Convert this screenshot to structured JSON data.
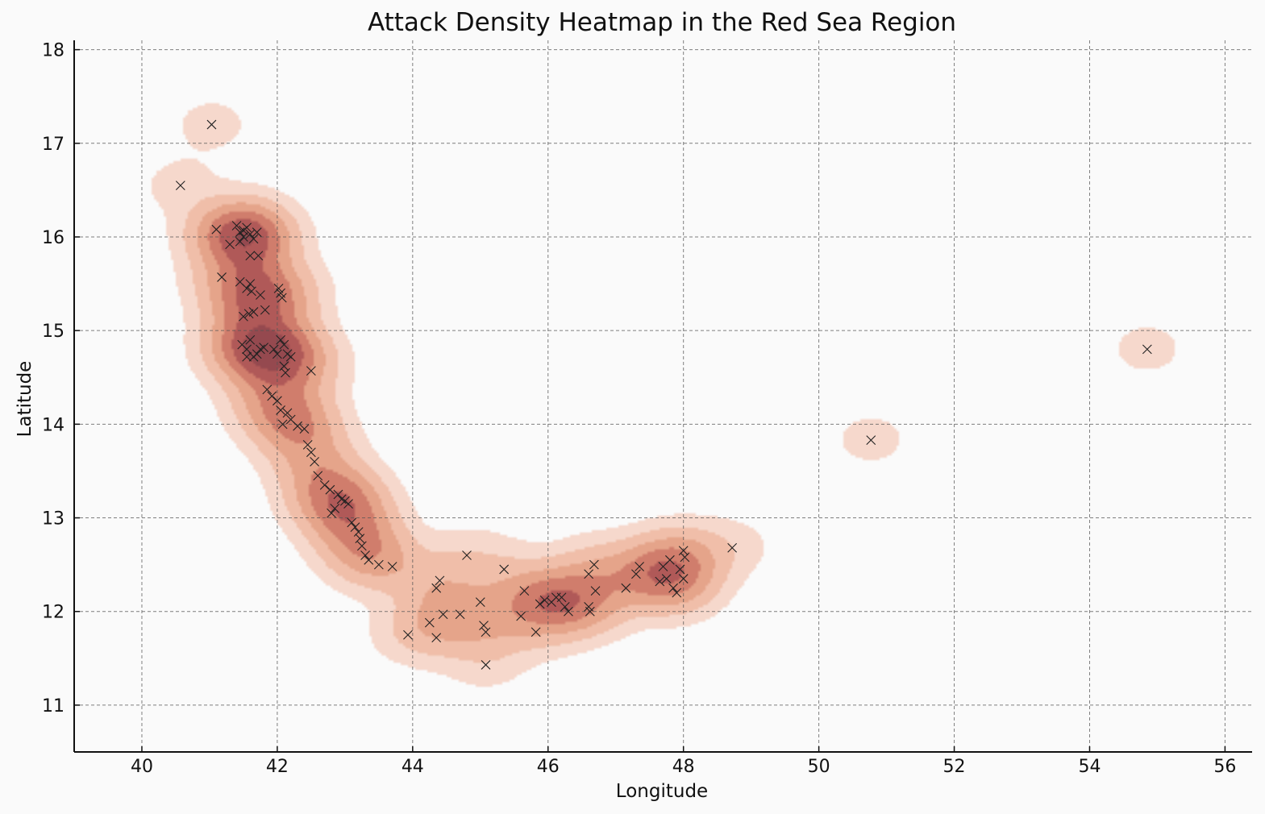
{
  "chart_data": {
    "type": "heatmap",
    "title": "Attack Density Heatmap in the Red Sea Region",
    "xlabel": "Longitude",
    "ylabel": "Latitude",
    "xlim": [
      39,
      56.4
    ],
    "ylim": [
      10.5,
      18.1
    ],
    "xticks": [
      40,
      42,
      44,
      46,
      48,
      50,
      52,
      54,
      56
    ],
    "yticks": [
      11,
      12,
      13,
      14,
      15,
      16,
      17,
      18
    ],
    "grid": true,
    "marker": "x",
    "colormap": [
      "#f5d5c8",
      "#efb9a2",
      "#e39c80",
      "#cc7260",
      "#a94b4a",
      "#8c3a40"
    ],
    "points": [
      [
        41.03,
        17.2
      ],
      [
        40.57,
        16.55
      ],
      [
        41.1,
        16.08
      ],
      [
        41.4,
        16.12
      ],
      [
        41.45,
        16.05
      ],
      [
        41.5,
        16.0
      ],
      [
        41.55,
        16.1
      ],
      [
        41.6,
        16.03
      ],
      [
        41.65,
        15.98
      ],
      [
        41.45,
        15.95
      ],
      [
        41.5,
        16.07
      ],
      [
        41.7,
        16.05
      ],
      [
        41.6,
        15.8
      ],
      [
        41.72,
        15.8
      ],
      [
        41.3,
        15.92
      ],
      [
        41.18,
        15.57
      ],
      [
        41.45,
        15.52
      ],
      [
        41.55,
        15.45
      ],
      [
        41.6,
        15.5
      ],
      [
        41.62,
        15.42
      ],
      [
        41.75,
        15.38
      ],
      [
        42.02,
        15.45
      ],
      [
        42.05,
        15.4
      ],
      [
        42.07,
        15.35
      ],
      [
        41.82,
        15.22
      ],
      [
        41.58,
        15.18
      ],
      [
        41.5,
        15.15
      ],
      [
        41.65,
        15.2
      ],
      [
        41.48,
        14.85
      ],
      [
        41.55,
        14.8
      ],
      [
        41.6,
        14.9
      ],
      [
        41.65,
        14.72
      ],
      [
        41.7,
        14.75
      ],
      [
        41.75,
        14.8
      ],
      [
        41.8,
        14.82
      ],
      [
        41.55,
        14.72
      ],
      [
        41.95,
        14.8
      ],
      [
        42.0,
        14.75
      ],
      [
        42.05,
        14.9
      ],
      [
        42.1,
        14.85
      ],
      [
        42.15,
        14.75
      ],
      [
        42.2,
        14.72
      ],
      [
        42.1,
        14.62
      ],
      [
        42.12,
        14.55
      ],
      [
        42.5,
        14.57
      ],
      [
        41.85,
        14.37
      ],
      [
        41.92,
        14.3
      ],
      [
        42.0,
        14.25
      ],
      [
        42.05,
        14.15
      ],
      [
        42.15,
        14.12
      ],
      [
        42.2,
        14.05
      ],
      [
        42.08,
        14.0
      ],
      [
        42.3,
        13.98
      ],
      [
        42.4,
        13.95
      ],
      [
        42.45,
        13.78
      ],
      [
        42.5,
        13.7
      ],
      [
        42.55,
        13.6
      ],
      [
        42.6,
        13.45
      ],
      [
        42.7,
        13.35
      ],
      [
        42.78,
        13.3
      ],
      [
        42.9,
        13.25
      ],
      [
        42.95,
        13.2
      ],
      [
        43.0,
        13.18
      ],
      [
        43.05,
        13.15
      ],
      [
        42.85,
        13.1
      ],
      [
        42.8,
        13.05
      ],
      [
        43.1,
        12.95
      ],
      [
        43.15,
        12.9
      ],
      [
        43.2,
        12.85
      ],
      [
        43.22,
        12.78
      ],
      [
        43.25,
        12.7
      ],
      [
        43.3,
        12.6
      ],
      [
        43.35,
        12.55
      ],
      [
        43.5,
        12.5
      ],
      [
        43.7,
        12.48
      ],
      [
        44.4,
        12.33
      ],
      [
        44.35,
        12.25
      ],
      [
        44.8,
        12.6
      ],
      [
        45.35,
        12.45
      ],
      [
        45.0,
        12.1
      ],
      [
        44.7,
        11.97
      ],
      [
        44.45,
        11.97
      ],
      [
        44.25,
        11.88
      ],
      [
        45.05,
        11.85
      ],
      [
        45.08,
        11.78
      ],
      [
        43.93,
        11.75
      ],
      [
        44.35,
        11.72
      ],
      [
        45.08,
        11.43
      ],
      [
        45.65,
        12.22
      ],
      [
        45.6,
        11.95
      ],
      [
        45.82,
        11.78
      ],
      [
        45.88,
        12.08
      ],
      [
        45.95,
        12.12
      ],
      [
        46.05,
        12.1
      ],
      [
        46.12,
        12.15
      ],
      [
        46.2,
        12.15
      ],
      [
        46.25,
        12.05
      ],
      [
        46.3,
        12.0
      ],
      [
        46.6,
        12.05
      ],
      [
        46.62,
        12.0
      ],
      [
        46.7,
        12.22
      ],
      [
        46.6,
        12.4
      ],
      [
        46.68,
        12.5
      ],
      [
        47.15,
        12.25
      ],
      [
        47.3,
        12.4
      ],
      [
        47.35,
        12.48
      ],
      [
        47.7,
        12.48
      ],
      [
        47.8,
        12.55
      ],
      [
        47.85,
        12.25
      ],
      [
        47.9,
        12.2
      ],
      [
        47.75,
        12.35
      ],
      [
        47.65,
        12.32
      ],
      [
        48.0,
        12.65
      ],
      [
        48.02,
        12.58
      ],
      [
        48.0,
        12.35
      ],
      [
        47.95,
        12.45
      ],
      [
        48.72,
        12.68
      ],
      [
        50.77,
        13.83
      ],
      [
        54.85,
        14.8
      ]
    ]
  }
}
